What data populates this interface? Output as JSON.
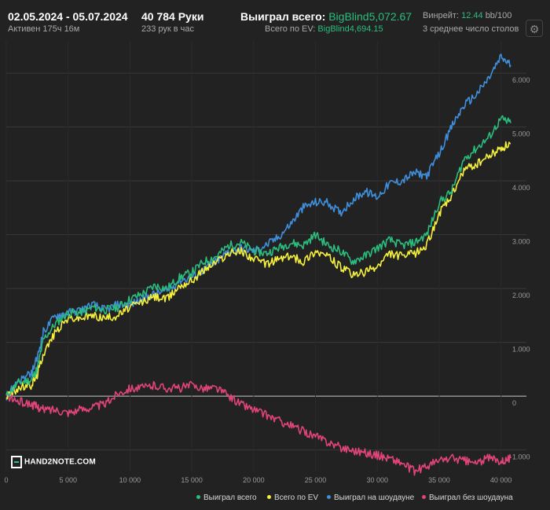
{
  "header": {
    "date_range": "02.05.2024 - 05.07.2024",
    "active_time": "Активен 175ч 16м",
    "hands": "40 784 Руки",
    "hands_per_hour": "233 рук в час",
    "won_total_label": "Выиграл всего:",
    "won_total_value": "BigBlind5,072.67",
    "ev_total_label": "Всего по EV:",
    "ev_total_value": "BigBlind4,694.15",
    "winrate_label": "Винрейт:",
    "winrate_value": "12.44",
    "winrate_unit": "bb/100",
    "avg_tables": "3 среднее число столов"
  },
  "logo_text": "HAND2NOTE.COM",
  "settings_icon": "gear-icon",
  "colors": {
    "background": "#222222",
    "grid": "#3a3a3a",
    "zero_line": "#c8c8c8",
    "won": "#2bbd7e",
    "ev": "#f5f03c",
    "showdown": "#3f8fdc",
    "non_showdown": "#e0447a"
  },
  "chart_data": {
    "type": "line",
    "title": "",
    "xlabel": "",
    "ylabel": "",
    "xlim": [
      0,
      40784
    ],
    "ylim": [
      -1400,
      6600
    ],
    "x_ticks": [
      0,
      5000,
      10000,
      15000,
      20000,
      25000,
      30000,
      35000,
      40000
    ],
    "x_tick_labels": [
      "0",
      "5 000",
      "10 000",
      "15 000",
      "20 000",
      "25 000",
      "30 000",
      "35 000",
      "40 000"
    ],
    "y_ticks": [
      6000,
      5000,
      4000,
      3000,
      2000,
      1000,
      0,
      -1000
    ],
    "y_tick_labels": [
      "6.000",
      "5.000",
      "4.000",
      "3.000",
      "2.000",
      "1.000",
      "0",
      "1.000"
    ],
    "x": [
      0,
      1000,
      2000,
      2500,
      3000,
      4000,
      5000,
      6000,
      7000,
      8000,
      9000,
      10000,
      11000,
      12000,
      13000,
      14000,
      15000,
      16000,
      17000,
      18000,
      19000,
      20000,
      21000,
      22000,
      23000,
      24000,
      25000,
      26000,
      27000,
      28000,
      29000,
      30000,
      31000,
      32000,
      33000,
      34000,
      35000,
      36000,
      37000,
      38000,
      39000,
      40000,
      40784
    ],
    "series": [
      {
        "name": "Выиграл всего",
        "color": "#2bbd7e",
        "values": [
          0,
          250,
          300,
          500,
          1050,
          1350,
          1550,
          1550,
          1650,
          1600,
          1650,
          1800,
          1900,
          2050,
          2000,
          2200,
          2300,
          2500,
          2600,
          2800,
          2850,
          2700,
          2650,
          2750,
          2850,
          2800,
          3000,
          2800,
          2700,
          2500,
          2600,
          2750,
          2900,
          2800,
          2850,
          3000,
          3600,
          3800,
          4400,
          4600,
          4800,
          5150,
          5072.67
        ]
      },
      {
        "name": "Всего по EV",
        "color": "#f5f03c",
        "values": [
          0,
          150,
          200,
          400,
          800,
          1200,
          1450,
          1450,
          1500,
          1450,
          1500,
          1650,
          1750,
          1850,
          1800,
          2050,
          2150,
          2350,
          2500,
          2650,
          2700,
          2550,
          2450,
          2550,
          2600,
          2500,
          2700,
          2600,
          2400,
          2250,
          2300,
          2400,
          2650,
          2600,
          2650,
          2800,
          3400,
          3700,
          4200,
          4300,
          4450,
          4600,
          4694.15
        ]
      },
      {
        "name": "Выиграл на шоудауне",
        "color": "#3f8fdc",
        "values": [
          0,
          300,
          400,
          700,
          1200,
          1500,
          1550,
          1600,
          1700,
          1600,
          1700,
          1700,
          1800,
          1900,
          1950,
          2150,
          2200,
          2350,
          2500,
          2700,
          2750,
          2700,
          2800,
          2950,
          3200,
          3500,
          3600,
          3600,
          3400,
          3650,
          3800,
          3700,
          3950,
          4000,
          4150,
          4100,
          4500,
          5000,
          5400,
          5600,
          5900,
          6300,
          6150
        ]
      },
      {
        "name": "Выиграл без шоудауна",
        "color": "#e0447a",
        "values": [
          0,
          -100,
          -150,
          -200,
          -250,
          -250,
          -300,
          -250,
          -200,
          -150,
          50,
          150,
          150,
          200,
          150,
          150,
          200,
          150,
          150,
          0,
          -150,
          -250,
          -350,
          -450,
          -550,
          -650,
          -750,
          -850,
          -950,
          -1000,
          -1050,
          -1100,
          -1150,
          -1250,
          -1400,
          -1300,
          -1200,
          -1150,
          -1200,
          -1250,
          -1150,
          -1200,
          -1150
        ]
      }
    ]
  }
}
